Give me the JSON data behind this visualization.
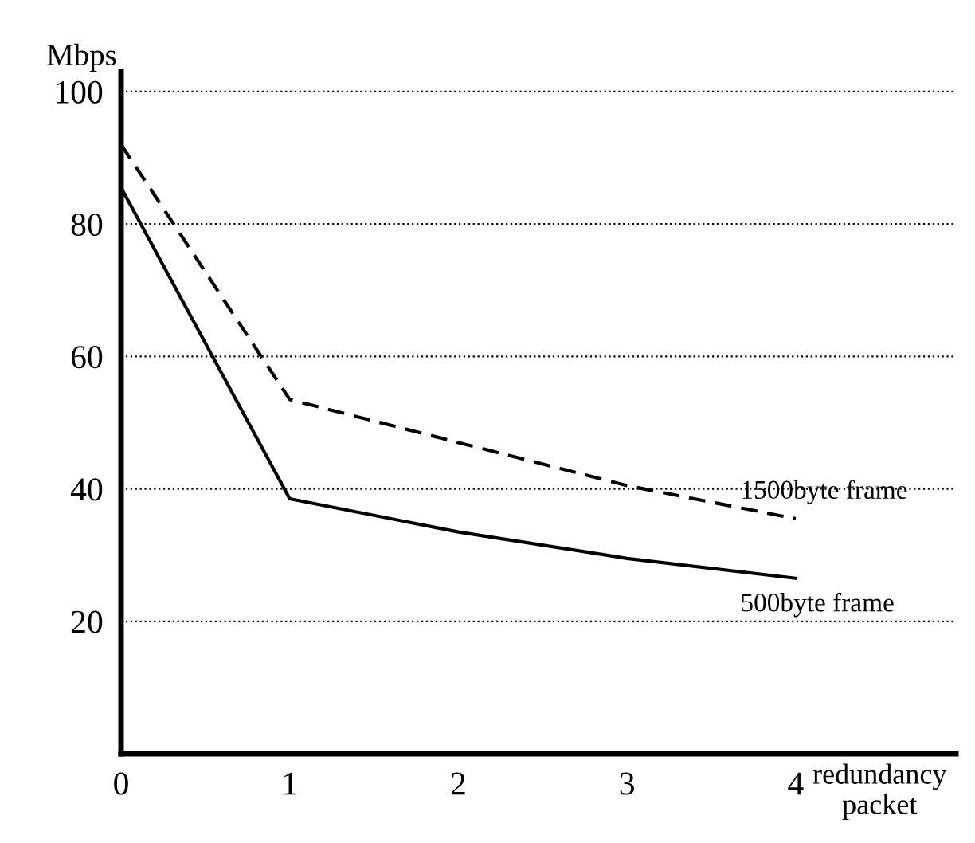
{
  "chart_data": {
    "type": "line",
    "ylabel": "Mbps",
    "xlabel": "redundancy\npacket",
    "x": [
      0,
      1,
      2,
      3,
      4
    ],
    "series": [
      {
        "name": "1500byte frame",
        "color": "#000000",
        "line_style": "dashed",
        "values": [
          92,
          53.5,
          47,
          40.5,
          35.5
        ]
      },
      {
        "name": "500byte frame",
        "color": "#000000",
        "line_style": "solid",
        "values": [
          85.5,
          38.5,
          33.5,
          29.5,
          26.5
        ]
      }
    ],
    "xlim": [
      0,
      4.95
    ],
    "ylim": [
      0,
      103
    ],
    "xticks": [
      0,
      1,
      2,
      3,
      4
    ],
    "yticks": [
      20,
      40,
      60,
      80,
      100
    ],
    "grid": "y",
    "legend": false,
    "marker": "none"
  }
}
